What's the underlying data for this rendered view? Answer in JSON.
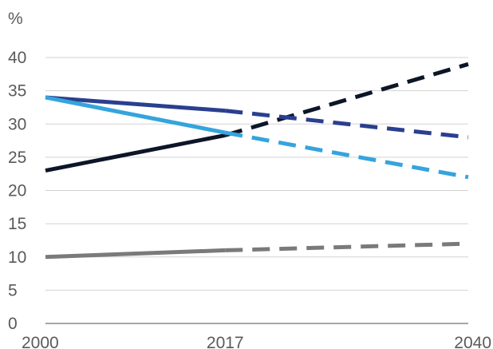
{
  "chart_data": {
    "type": "line",
    "title": "",
    "xlabel": "",
    "ylabel": "%",
    "x_ticks": [
      "2000",
      "2017",
      "2040"
    ],
    "y_ticks": [
      "0",
      "5",
      "10",
      "15",
      "20",
      "25",
      "30",
      "35",
      "40"
    ],
    "xlim": [
      2000,
      2040
    ],
    "ylim": [
      0,
      40
    ],
    "grid": "horizontal",
    "legend": "none",
    "series": [
      {
        "color": "#0d1628",
        "points": [
          {
            "x": 2000,
            "y": 23
          },
          {
            "x": 2017,
            "y": 28.3
          },
          {
            "x": 2040,
            "y": 39
          }
        ],
        "dashed_from_x": 2017
      },
      {
        "color": "#2b3f8f",
        "points": [
          {
            "x": 2000,
            "y": 34
          },
          {
            "x": 2017,
            "y": 32
          },
          {
            "x": 2040,
            "y": 28
          }
        ],
        "dashed_from_x": 2017
      },
      {
        "color": "#35a4dd",
        "points": [
          {
            "x": 2000,
            "y": 34
          },
          {
            "x": 2017,
            "y": 28.7
          },
          {
            "x": 2040,
            "y": 22
          }
        ],
        "dashed_from_x": 2017
      },
      {
        "color": "#7a7a7a",
        "points": [
          {
            "x": 2000,
            "y": 10
          },
          {
            "x": 2017,
            "y": 11
          },
          {
            "x": 2040,
            "y": 12
          }
        ],
        "dashed_from_x": 2017
      }
    ]
  }
}
